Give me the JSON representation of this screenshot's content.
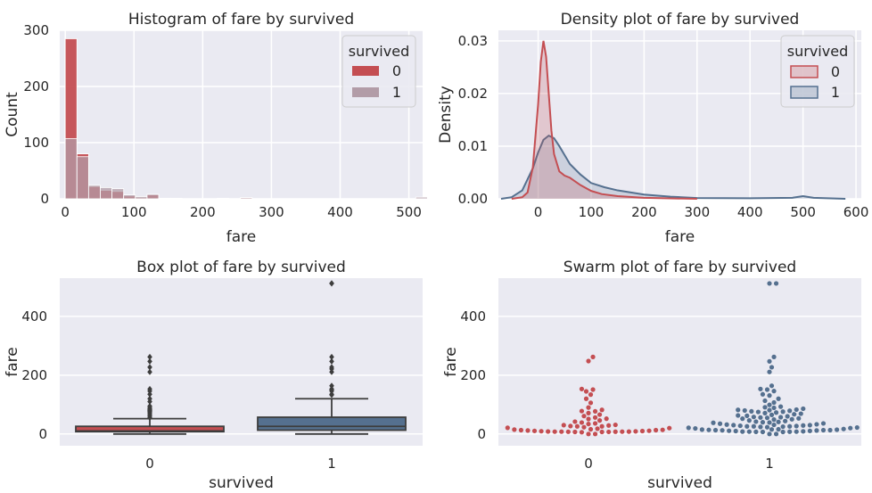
{
  "colors": {
    "red": "#c44e52",
    "blue": "#4c72b0",
    "slate": "#55708f",
    "panel": "#eaeaf2",
    "grid": "#ffffff",
    "mauve": "#b29ca7"
  },
  "chart_data": [
    {
      "type": "bar",
      "subtype": "histogram",
      "title": "Histogram of fare by survived",
      "xlabel": "fare",
      "ylabel": "Count",
      "xlim": [
        -8,
        520
      ],
      "ylim": [
        0,
        300
      ],
      "xticks": [
        "0",
        "100",
        "200",
        "300",
        "400",
        "500"
      ],
      "yticks": [
        "0",
        "100",
        "200",
        "300"
      ],
      "legend": {
        "title": "survived",
        "placement": "top-right",
        "labels": [
          "0",
          "1"
        ]
      },
      "bin_width": 17,
      "bin_starts": [
        0,
        17,
        34,
        51,
        68,
        85,
        102,
        119,
        136,
        153,
        170,
        187,
        204,
        221,
        238,
        255,
        272,
        289,
        306,
        323,
        340,
        357,
        374,
        391,
        408,
        425,
        442,
        459,
        476,
        493,
        510
      ],
      "series": [
        {
          "name": "0",
          "values": [
            285,
            80,
            22,
            15,
            13,
            5,
            2,
            7,
            1,
            1,
            0,
            0,
            0,
            1,
            0,
            2,
            0,
            0,
            0,
            0,
            0,
            0,
            0,
            0,
            0,
            0,
            0,
            0,
            0,
            0,
            0
          ]
        },
        {
          "name": "1",
          "values": [
            107,
            75,
            24,
            20,
            18,
            7,
            4,
            8,
            1,
            1,
            0,
            0,
            0,
            1,
            0,
            2,
            0,
            0,
            0,
            0,
            0,
            0,
            0,
            0,
            0,
            0,
            0,
            0,
            0,
            0,
            3
          ]
        }
      ]
    },
    {
      "type": "area",
      "subtype": "density",
      "title": "Density plot of fare by survived",
      "xlabel": "fare",
      "ylabel": "Density",
      "xlim": [
        -75,
        610
      ],
      "ylim": [
        0,
        0.032
      ],
      "xticks": [
        "0",
        "100",
        "200",
        "300",
        "400",
        "500",
        "600"
      ],
      "yticks": [
        "0.00",
        "0.01",
        "0.02",
        "0.03"
      ],
      "legend": {
        "title": "survived",
        "placement": "top-right",
        "labels": [
          "0",
          "1"
        ]
      },
      "series": [
        {
          "name": "0",
          "x": [
            -50,
            -30,
            -20,
            -10,
            0,
            5,
            10,
            15,
            20,
            25,
            30,
            40,
            50,
            60,
            70,
            80,
            100,
            120,
            150,
            200,
            250,
            300
          ],
          "y": [
            0.0,
            0.0003,
            0.0012,
            0.006,
            0.018,
            0.026,
            0.03,
            0.027,
            0.02,
            0.013,
            0.0085,
            0.0052,
            0.0044,
            0.004,
            0.0033,
            0.0026,
            0.0015,
            0.0009,
            0.0005,
            0.0002,
            8e-05,
            0.0
          ]
        },
        {
          "name": "1",
          "x": [
            -70,
            -50,
            -30,
            -10,
            0,
            10,
            20,
            30,
            40,
            50,
            60,
            80,
            100,
            125,
            150,
            200,
            250,
            300,
            400,
            480,
            500,
            520,
            580
          ],
          "y": [
            0.0,
            0.0003,
            0.0016,
            0.0058,
            0.0088,
            0.0112,
            0.012,
            0.0115,
            0.01,
            0.0083,
            0.0066,
            0.0046,
            0.003,
            0.0022,
            0.0016,
            0.0008,
            0.0004,
            0.00015,
            0.0001,
            0.0002,
            0.0005,
            0.0002,
            0.0
          ]
        }
      ]
    },
    {
      "type": "box",
      "title": "Box plot of fare by survived",
      "xlabel": "survived",
      "ylabel": "fare",
      "categories": [
        "0",
        "1"
      ],
      "ylim": [
        -40,
        530
      ],
      "yticks": [
        "0",
        "200",
        "400"
      ],
      "boxes": [
        {
          "q1": 8,
          "median": 10.5,
          "q3": 26,
          "whisker_low": 0,
          "whisker_high": 52,
          "outliers": [
            55,
            60,
            65,
            70,
            75,
            78,
            80,
            82,
            85,
            90,
            95,
            110,
            120,
            135,
            146,
            153,
            211,
            227,
            247,
            262
          ]
        },
        {
          "q1": 13,
          "median": 26,
          "q3": 57,
          "whisker_low": 0,
          "whisker_high": 120,
          "outliers": [
            133,
            135,
            146,
            151,
            153,
            164,
            211,
            221,
            227,
            247,
            262,
            512,
            512
          ]
        }
      ]
    },
    {
      "type": "scatter",
      "subtype": "swarm",
      "title": "Swarm plot of fare by survived",
      "xlabel": "survived",
      "ylabel": "fare",
      "categories": [
        "0",
        "1"
      ],
      "ylim": [
        -40,
        530
      ],
      "yticks": [
        "0",
        "200",
        "400"
      ],
      "series": [
        {
          "name": "0",
          "values": [
            0,
            0,
            6,
            7,
            7,
            7.2,
            7.5,
            7.8,
            7.9,
            8,
            8,
            8.1,
            8.5,
            9,
            9.5,
            10,
            10.5,
            11,
            12,
            13,
            13,
            14,
            15,
            16,
            18,
            20,
            21,
            23,
            26,
            26,
            27,
            29,
            30,
            31,
            34,
            36,
            39,
            42,
            46,
            51,
            52,
            56,
            61,
            66,
            71,
            77,
            78,
            82,
            90,
            106,
            120,
            134,
            145,
            151,
            153,
            248,
            262
          ]
        },
        {
          "name": "1",
          "values": [
            0,
            0,
            7,
            7,
            7.3,
            7.8,
            7.9,
            8,
            8.1,
            9,
            10,
            10.5,
            11,
            12,
            12.5,
            13,
            13,
            13,
            14,
            14.5,
            15,
            15.5,
            16,
            17,
            19,
            20,
            21,
            22,
            23,
            24,
            25,
            26,
            26,
            26,
            27,
            28,
            29,
            30,
            30,
            31,
            32,
            33,
            35,
            36,
            38,
            39,
            40,
            41,
            42,
            44,
            46,
            49,
            50,
            52,
            53,
            55,
            56,
            57,
            58,
            60,
            62,
            63,
            65,
            67,
            69,
            71,
            73,
            75,
            76,
            77,
            79,
            80,
            81,
            82,
            83,
            86,
            89,
            91,
            93,
            99,
            107,
            113,
            120,
            131,
            135,
            146,
            151,
            153,
            164,
            211,
            227,
            247,
            262,
            512,
            512
          ]
        }
      ]
    }
  ]
}
